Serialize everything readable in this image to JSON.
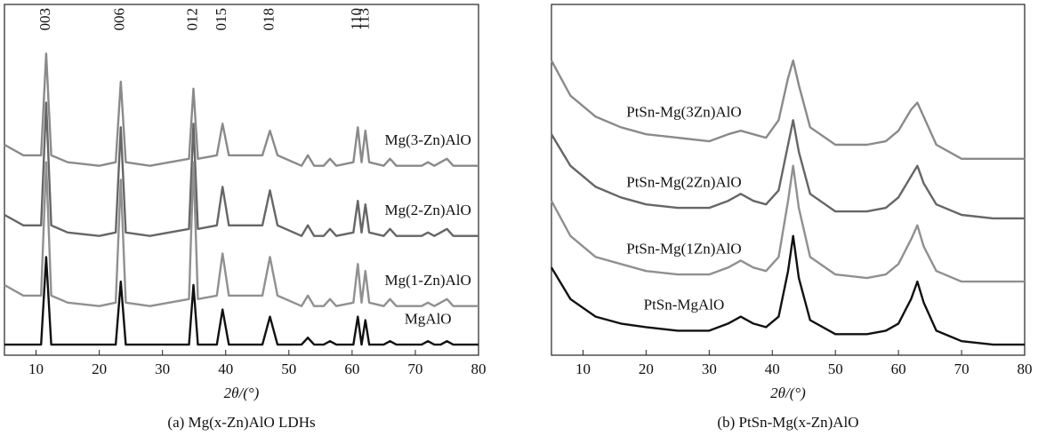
{
  "chart_data": [
    {
      "type": "line",
      "title": "(a) Mg(x-Zn)AlO  LDHs",
      "xlabel": "2θ/(°)",
      "xlim": [
        5,
        80
      ],
      "xticks": [
        10,
        20,
        30,
        40,
        50,
        60,
        70,
        80
      ],
      "ylim": [
        0,
        100
      ],
      "annotations": [
        {
          "label": "003",
          "x": 11.6
        },
        {
          "label": "006",
          "x": 23.4
        },
        {
          "label": "012",
          "x": 34.9
        },
        {
          "label": "015",
          "x": 39.5
        },
        {
          "label": "018",
          "x": 47
        },
        {
          "label": "110",
          "x": 60.9
        },
        {
          "label": "113",
          "x": 62.1
        }
      ],
      "x": [
        5,
        8,
        10.8,
        11.6,
        12.4,
        15,
        20,
        22.6,
        23.4,
        24.2,
        28,
        34.2,
        34.9,
        35.6,
        38.6,
        39.5,
        40.5,
        45.8,
        47,
        48.2,
        52,
        53,
        54,
        55.5,
        56.5,
        57.5,
        60.2,
        60.9,
        61.5,
        62.1,
        62.7,
        65,
        66,
        67,
        71,
        72,
        73,
        74,
        75,
        76,
        80
      ],
      "series": [
        {
          "name": "Mg(3-Zn)AlO",
          "color": "#8a8a8a",
          "values": [
            60,
            57,
            57,
            86,
            57,
            55,
            54,
            55,
            78,
            55,
            54,
            56,
            76,
            56,
            57,
            66,
            57,
            57,
            64,
            57,
            54,
            57,
            54,
            54,
            56,
            54,
            55,
            65,
            55,
            64,
            55,
            54,
            56,
            54,
            54,
            55,
            54,
            55,
            56,
            54,
            54
          ]
        },
        {
          "name": "Mg(2-Zn)AlO",
          "color": "#666666",
          "values": [
            40,
            37,
            37,
            72,
            37,
            35,
            34,
            35,
            65,
            35,
            34,
            36,
            66,
            36,
            37,
            48,
            37,
            37,
            47,
            37,
            34,
            37,
            34,
            34,
            36,
            34,
            35,
            44,
            35,
            43,
            35,
            34,
            36,
            34,
            34,
            35,
            34,
            35,
            36,
            34,
            34
          ]
        },
        {
          "name": "Mg(1-Zn)AlO",
          "color": "#909090",
          "values": [
            20,
            17,
            17,
            55,
            17,
            15,
            14,
            15,
            50,
            15,
            14,
            16,
            55,
            16,
            17,
            29,
            17,
            17,
            28,
            17,
            14,
            17,
            14,
            14,
            16,
            14,
            15,
            26,
            15,
            24,
            15,
            14,
            16,
            14,
            14,
            15,
            14,
            15,
            16,
            14,
            14
          ]
        },
        {
          "name": "MgAlO",
          "color": "#111111",
          "values": [
            3,
            3,
            3,
            28,
            3,
            3,
            3,
            3,
            21,
            3,
            3,
            3,
            20,
            3,
            3,
            13,
            3,
            3,
            11,
            3,
            3,
            5,
            3,
            3,
            4,
            3,
            3,
            11,
            3,
            10,
            3,
            3,
            4,
            3,
            3,
            4,
            3,
            3,
            4,
            3,
            3
          ]
        }
      ]
    },
    {
      "type": "line",
      "title": "(b) PtSn-Mg(x-Zn)AlO",
      "xlabel": "2θ/(°)",
      "xlim": [
        5,
        80
      ],
      "xticks": [
        10,
        20,
        30,
        40,
        50,
        60,
        70,
        80
      ],
      "ylim": [
        0,
        100
      ],
      "x": [
        5,
        8,
        12,
        16,
        20,
        25,
        30,
        33,
        35,
        37,
        39,
        41,
        42.5,
        43.3,
        44.2,
        46,
        50,
        55,
        58,
        60,
        62,
        63,
        64,
        66,
        70,
        75,
        80
      ],
      "series": [
        {
          "name": "PtSn-Mg(3Zn)AlO",
          "color": "#8a8a8a",
          "values": [
            84,
            74,
            68,
            65,
            63,
            62,
            61,
            63,
            64,
            63,
            62,
            67,
            79,
            84,
            77,
            65,
            60,
            60,
            61,
            64,
            70,
            72,
            68,
            60,
            56,
            56,
            56
          ]
        },
        {
          "name": "PtSn-Mg(2Zn)AlO",
          "color": "#666666",
          "values": [
            63,
            54,
            48,
            45,
            43,
            42,
            42,
            44,
            46,
            44,
            43,
            47,
            60,
            67,
            58,
            46,
            41,
            41,
            42,
            45,
            51,
            54,
            49,
            43,
            40,
            39,
            39
          ]
        },
        {
          "name": "PtSn-Mg(1Zn)AlO",
          "color": "#909090",
          "values": [
            44,
            34,
            28,
            26,
            24,
            23,
            23,
            25,
            27,
            25,
            24,
            28,
            44,
            54,
            42,
            28,
            23,
            22,
            23,
            26,
            33,
            37,
            31,
            24,
            21,
            21,
            21
          ]
        },
        {
          "name": "PtSn-MgAlO",
          "color": "#111111",
          "values": [
            25,
            16,
            11,
            9,
            8,
            7,
            7,
            9,
            11,
            9,
            8,
            11,
            24,
            34,
            22,
            10,
            6,
            6,
            7,
            9,
            16,
            21,
            15,
            7,
            4,
            3,
            3
          ]
        }
      ]
    }
  ]
}
